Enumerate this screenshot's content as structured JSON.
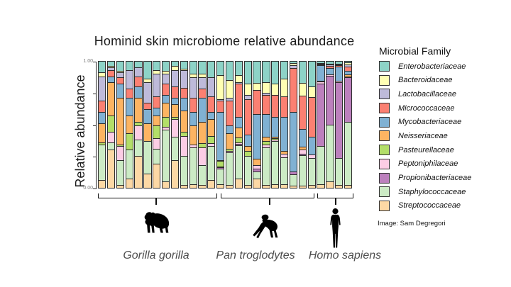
{
  "figure": {
    "credit": "Image: Sam Degregori"
  },
  "chart_data": {
    "type": "stacked_bar",
    "title": "Hominid skin microbiome relative abundance",
    "ylabel": "Relative abundance",
    "ylim": [
      0,
      1
    ],
    "yticks": [
      0,
      0.25,
      0.5,
      0.75,
      1
    ],
    "ytick_labels": [
      "0.00",
      "",
      "",
      "",
      "1.00"
    ],
    "grid": false,
    "legend_title": "Microbial Family",
    "legend_position": "right",
    "legend_order_top_to_bottom": [
      "Enterobacteriaceae",
      "Bacteroidaceae",
      "Lactobacillaceae",
      "Micrococcaceae",
      "Mycobacteriaceae",
      "Neisseriaceae",
      "Pasteurellaceae",
      "Peptoniphilaceae",
      "Propionibacteriaceae",
      "Staphylococcaceae",
      "Streptococcaceae"
    ],
    "stack_order_bottom_to_top": [
      "Streptococcaceae",
      "Staphylococcaceae",
      "Propionibacteriaceae",
      "Peptoniphilaceae",
      "Pasteurellaceae",
      "Neisseriaceae",
      "Mycobacteriaceae",
      "Micrococcaceae",
      "Lactobacillaceae",
      "Bacteroidaceae",
      "Enterobacteriaceae"
    ],
    "colors": {
      "Enterobacteriaceae": "#8DD3C7",
      "Bacteroidaceae": "#FFFFB3",
      "Lactobacillaceae": "#BEBADA",
      "Micrococcaceae": "#FB8072",
      "Mycobacteriaceae": "#80B1D3",
      "Neisseriaceae": "#FDB462",
      "Pasteurellaceae": "#B3DE69",
      "Peptoniphilaceae": "#FCCDE5",
      "Propionibacteriaceae": "#BC80BD",
      "Staphylococcaceae": "#CCEBC5",
      "Streptococcaceae": "#FCD8A5"
    },
    "groups": [
      {
        "label": "Gorilla gorilla",
        "icon": "gorilla-silhouette",
        "n_samples": 13,
        "bars": [
          [
            0.06,
            0.28,
            0,
            0,
            0.02,
            0.15,
            0.09,
            0.09,
            0.19,
            0.03,
            0.09
          ],
          [
            0.3,
            0.06,
            0,
            0.08,
            0.13,
            0.26,
            0.05,
            0.05,
            0.02,
            0.01,
            0.04
          ],
          [
            0.02,
            0.2,
            0,
            0.11,
            0.01,
            0.37,
            0.11,
            0.05,
            0.04,
            0.01,
            0.08
          ],
          [
            0.07,
            0.23,
            0,
            0,
            0.13,
            0.14,
            0.14,
            0.07,
            0.15,
            0,
            0.07
          ],
          [
            0.25,
            0.13,
            0,
            0.11,
            0.03,
            0.19,
            0.09,
            0.08,
            0.07,
            0,
            0.05
          ],
          [
            0.11,
            0.26,
            0,
            0,
            0,
            0.14,
            0.11,
            0.05,
            0.16,
            0.03,
            0.14
          ],
          [
            0.19,
            0.12,
            0,
            0.08,
            0.1,
            0.08,
            0.06,
            0.09,
            0.18,
            0.03,
            0.07
          ],
          [
            0.05,
            0.41,
            0,
            0.02,
            0.08,
            0.11,
            0.06,
            0.09,
            0.08,
            0.02,
            0.08
          ],
          [
            0.22,
            0.18,
            0,
            0.14,
            0.02,
            0.1,
            0.05,
            0.09,
            0.13,
            0.03,
            0.04
          ],
          [
            0.02,
            0.23,
            0,
            0.16,
            0.03,
            0.17,
            0.1,
            0.08,
            0.14,
            0.01,
            0.06
          ],
          [
            0.03,
            0.29,
            0,
            0.02,
            0,
            0.15,
            0.11,
            0.11,
            0.16,
            0.03,
            0.1
          ],
          [
            0.02,
            0.16,
            0,
            0.14,
            0.03,
            0.17,
            0.19,
            0.07,
            0.09,
            0.03,
            0.1
          ],
          [
            0.06,
            0.27,
            0,
            0.02,
            0.06,
            0.13,
            0.06,
            0.12,
            0.15,
            0,
            0.13
          ]
        ]
      },
      {
        "label": "Pan troglodytes",
        "icon": "chimpanzee-silhouette",
        "n_samples": 11,
        "bars": [
          [
            0.03,
            0.12,
            0.01,
            0.01,
            0.04,
            0.01,
            0.38,
            0.09,
            0.01,
            0.19,
            0.11
          ],
          [
            0.02,
            0.26,
            0,
            0.01,
            0.02,
            0.12,
            0.06,
            0.2,
            0.02,
            0.14,
            0.15
          ],
          [
            0.07,
            0.26,
            0.01,
            0.01,
            0.04,
            0.08,
            0.08,
            0.26,
            0.01,
            0.055,
            0.11
          ],
          [
            0.02,
            0.23,
            0,
            0,
            0.04,
            0.04,
            0.09,
            0.28,
            0.03,
            0.09,
            0.18
          ],
          [
            0.07,
            0.06,
            0.02,
            0.03,
            0,
            0.05,
            0.35,
            0.19,
            0,
            0.06,
            0.17
          ],
          [
            0.02,
            0.3,
            0,
            0.02,
            0.03,
            0.03,
            0.18,
            0.15,
            0.02,
            0.08,
            0.17
          ],
          [
            0.03,
            0.34,
            0,
            0.01,
            0.01,
            0.01,
            0.16,
            0.17,
            0,
            0.09,
            0.18
          ],
          [
            0.03,
            0.21,
            0,
            0.03,
            0,
            0.02,
            0.27,
            0.16,
            0,
            0.14,
            0.14
          ],
          [
            0.015,
            0.09,
            0.02,
            0,
            0,
            0,
            0.465,
            0.345,
            0.02,
            0.02,
            0.015
          ],
          [
            0.015,
            0.24,
            0.015,
            0.03,
            0,
            0.025,
            0.14,
            0.26,
            0,
            0.1,
            0.175
          ],
          [
            0.02,
            0.215,
            0,
            0.03,
            0,
            0,
            0.14,
            0.31,
            0,
            0.085,
            0.2
          ]
        ]
      },
      {
        "label": "Homo sapiens",
        "icon": "human-silhouette",
        "n_samples": 4,
        "bars": [
          [
            0.03,
            0.3,
            0.49,
            0.02,
            0,
            0.005,
            0.12,
            0.005,
            0.005,
            0.005,
            0.02
          ],
          [
            0.05,
            0.445,
            0.39,
            0.01,
            0,
            0,
            0.05,
            0.015,
            0.01,
            0.01,
            0.02
          ],
          [
            0.02,
            0.215,
            0.59,
            0.01,
            0,
            0,
            0.11,
            0.01,
            0.01,
            0.005,
            0.02
          ],
          [
            0.02,
            0.49,
            0.345,
            0.005,
            0,
            0.015,
            0.03,
            0.03,
            0.02,
            0.015,
            0.01
          ]
        ]
      }
    ]
  }
}
